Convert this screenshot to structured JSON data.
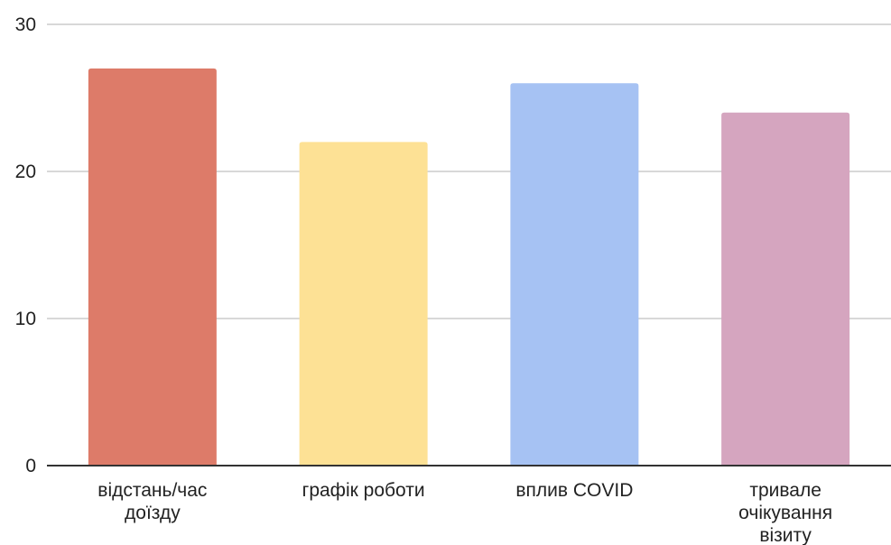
{
  "chart_data": {
    "type": "bar",
    "categories": [
      [
        "відстань/час",
        "доїзду"
      ],
      [
        "графік роботи"
      ],
      [
        "вплив COVID"
      ],
      [
        "тривале",
        "очікування",
        "візиту"
      ]
    ],
    "values": [
      27,
      22,
      26,
      24
    ],
    "bar_colors": [
      "#dd7b69",
      "#fde195",
      "#a6c2f3",
      "#d5a5bf"
    ],
    "ylim": [
      0,
      30
    ],
    "yticks": [
      0,
      10,
      20,
      30
    ],
    "grid": true,
    "title": "",
    "xlabel": "",
    "ylabel": ""
  }
}
